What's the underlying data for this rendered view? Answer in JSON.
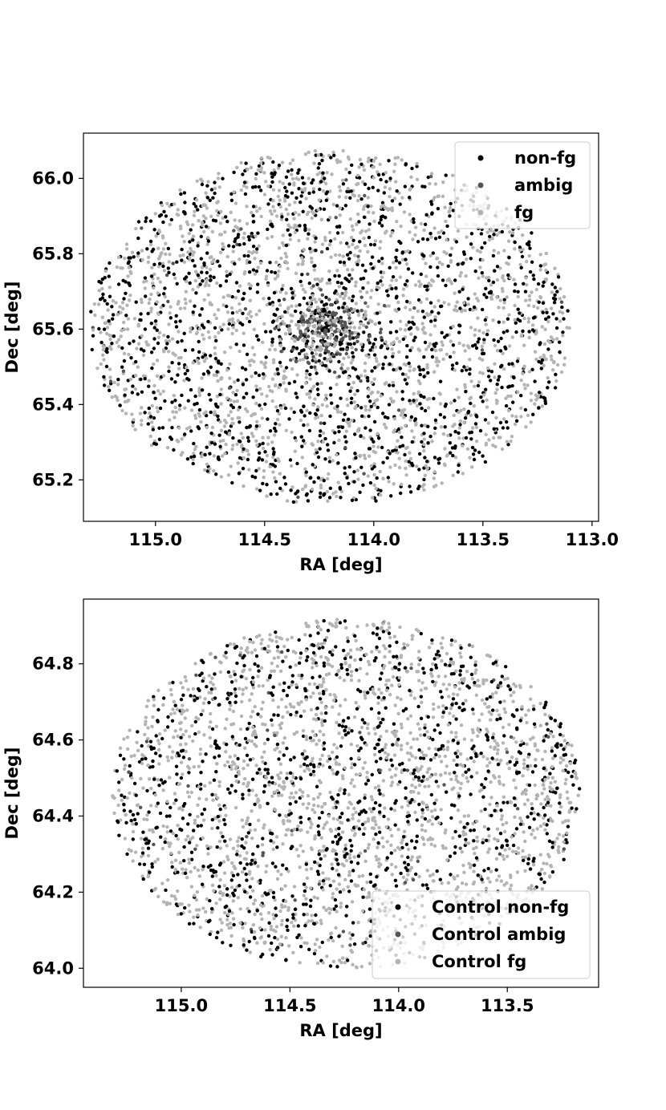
{
  "colors": {
    "non_fg": "#000000",
    "ambig": "#555555",
    "fg": "#b4b4b4",
    "axes": "#000000",
    "background": "#ffffff"
  },
  "chart_data": [
    {
      "type": "scatter",
      "xlabel": "RA [deg]",
      "ylabel": "Dec [deg]",
      "xlim": [
        115.33,
        112.97
      ],
      "ylim": [
        65.09,
        66.12
      ],
      "x_inverted": true,
      "xticks": [
        115.0,
        114.5,
        114.0,
        113.5,
        113.0
      ],
      "xtick_labels": [
        "115.0",
        "114.5",
        "114.0",
        "113.5",
        "113.0"
      ],
      "yticks": [
        65.2,
        65.4,
        65.6,
        65.8,
        66.0
      ],
      "ytick_labels": [
        "65.2",
        "65.4",
        "65.6",
        "65.8",
        "66.0"
      ],
      "legend_position": "top-right",
      "grid": false,
      "field": {
        "shape": "ellipse",
        "center_ra": 114.2,
        "center_dec": 65.605,
        "ra_radius": 1.1,
        "dec_radius": 0.47
      },
      "cluster": {
        "center_ra": 114.22,
        "center_dec": 65.6,
        "ra_spread": 0.1,
        "dec_spread": 0.05
      },
      "series": [
        {
          "name": "non-fg",
          "color_key": "non_fg",
          "count": 1350
        },
        {
          "name": "ambig",
          "color_key": "ambig",
          "count": 40
        },
        {
          "name": "fg",
          "color_key": "fg",
          "count": 1750
        }
      ],
      "cluster_series": [
        {
          "name": "non-fg",
          "count": 110
        },
        {
          "name": "ambig",
          "count": 150
        },
        {
          "name": "fg",
          "count": 90
        }
      ]
    },
    {
      "type": "scatter",
      "xlabel": "RA [deg]",
      "ylabel": "Dec [deg]",
      "xlim": [
        115.45,
        113.08
      ],
      "ylim": [
        63.95,
        64.97
      ],
      "x_inverted": true,
      "xticks": [
        115.0,
        114.5,
        114.0,
        113.5
      ],
      "xtick_labels": [
        "115.0",
        "114.5",
        "114.0",
        "113.5"
      ],
      "yticks": [
        64.0,
        64.2,
        64.4,
        64.6,
        64.8
      ],
      "ytick_labels": [
        "64.0",
        "64.2",
        "64.4",
        "64.6",
        "64.8"
      ],
      "legend_position": "bottom-right",
      "grid": false,
      "field": {
        "shape": "ellipse",
        "center_ra": 114.24,
        "center_dec": 64.458,
        "ra_radius": 1.08,
        "dec_radius": 0.46
      },
      "cluster": null,
      "series": [
        {
          "name": "Control non-fg",
          "color_key": "non_fg",
          "count": 1100
        },
        {
          "name": "Control ambig",
          "color_key": "ambig",
          "count": 60
        },
        {
          "name": "Control fg",
          "color_key": "fg",
          "count": 1900
        }
      ],
      "cluster_series": []
    }
  ]
}
